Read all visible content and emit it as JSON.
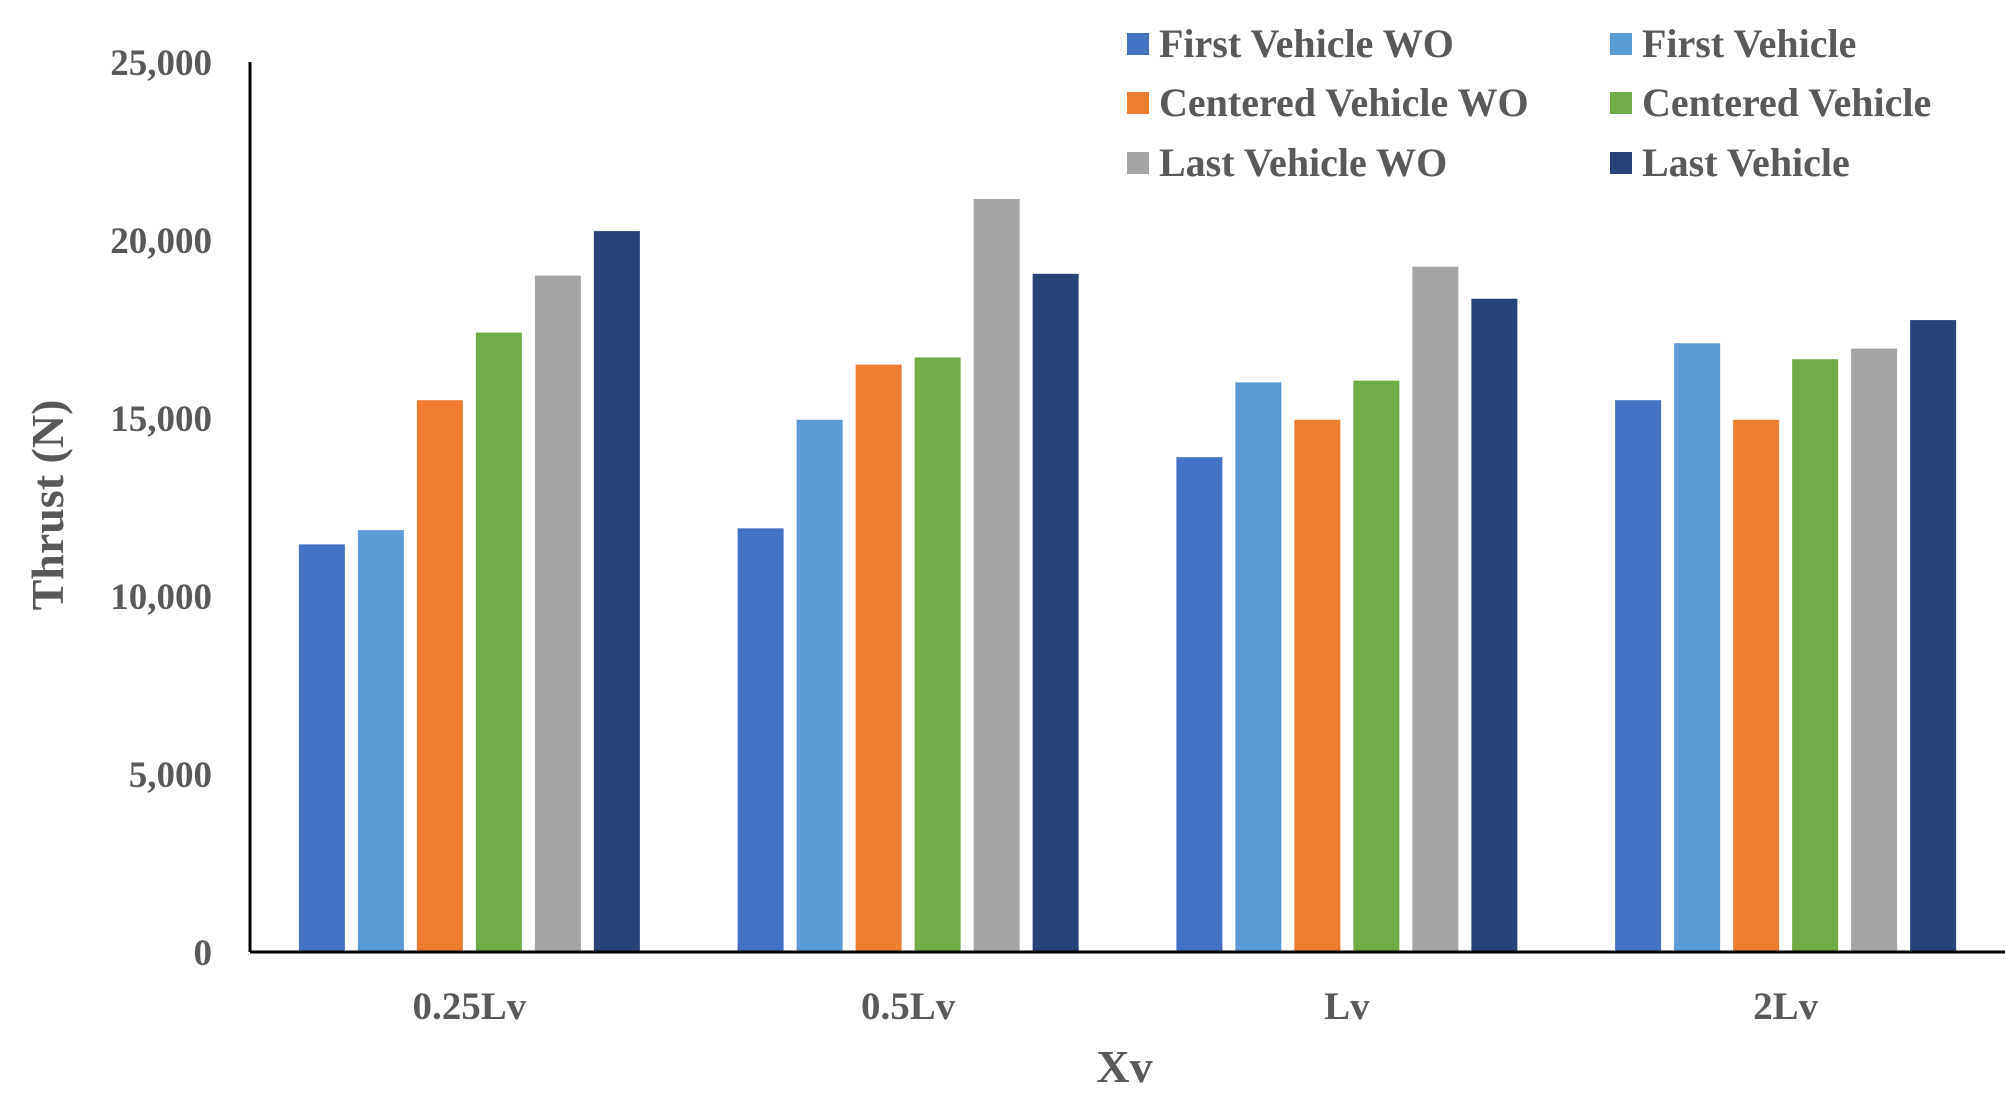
{
  "chart_data": {
    "type": "bar",
    "title": "",
    "xlabel": "Xv",
    "ylabel": "Thrust (N)",
    "ylim": [
      0,
      25000
    ],
    "yticks": [
      0,
      5000,
      10000,
      15000,
      20000,
      25000
    ],
    "ytick_labels": [
      "0",
      "5,000",
      "10,000",
      "15,000",
      "20,000",
      "25,000"
    ],
    "categories": [
      "0.25Lv",
      "0.5Lv",
      "Lv",
      "2Lv"
    ],
    "legend_position": "top-right",
    "grid": false,
    "series": [
      {
        "name": "First Vehicle WO",
        "color": "#4472C4",
        "values": [
          11450,
          11900,
          13900,
          15500
        ]
      },
      {
        "name": "First Vehicle",
        "color": "#5B9BD5",
        "values": [
          11850,
          14950,
          16000,
          17100
        ]
      },
      {
        "name": "Centered Vehicle WO",
        "color": "#ED7D31",
        "values": [
          15500,
          16500,
          14950,
          14950
        ]
      },
      {
        "name": "Centered Vehicle",
        "color": "#70AD47",
        "values": [
          17400,
          16700,
          16050,
          16650
        ]
      },
      {
        "name": "Last Vehicle WO",
        "color": "#A5A5A5",
        "values": [
          19000,
          21150,
          19250,
          16950
        ]
      },
      {
        "name": "Last Vehicle",
        "color": "#264478",
        "values": [
          20250,
          19050,
          18350,
          17750
        ]
      }
    ]
  }
}
